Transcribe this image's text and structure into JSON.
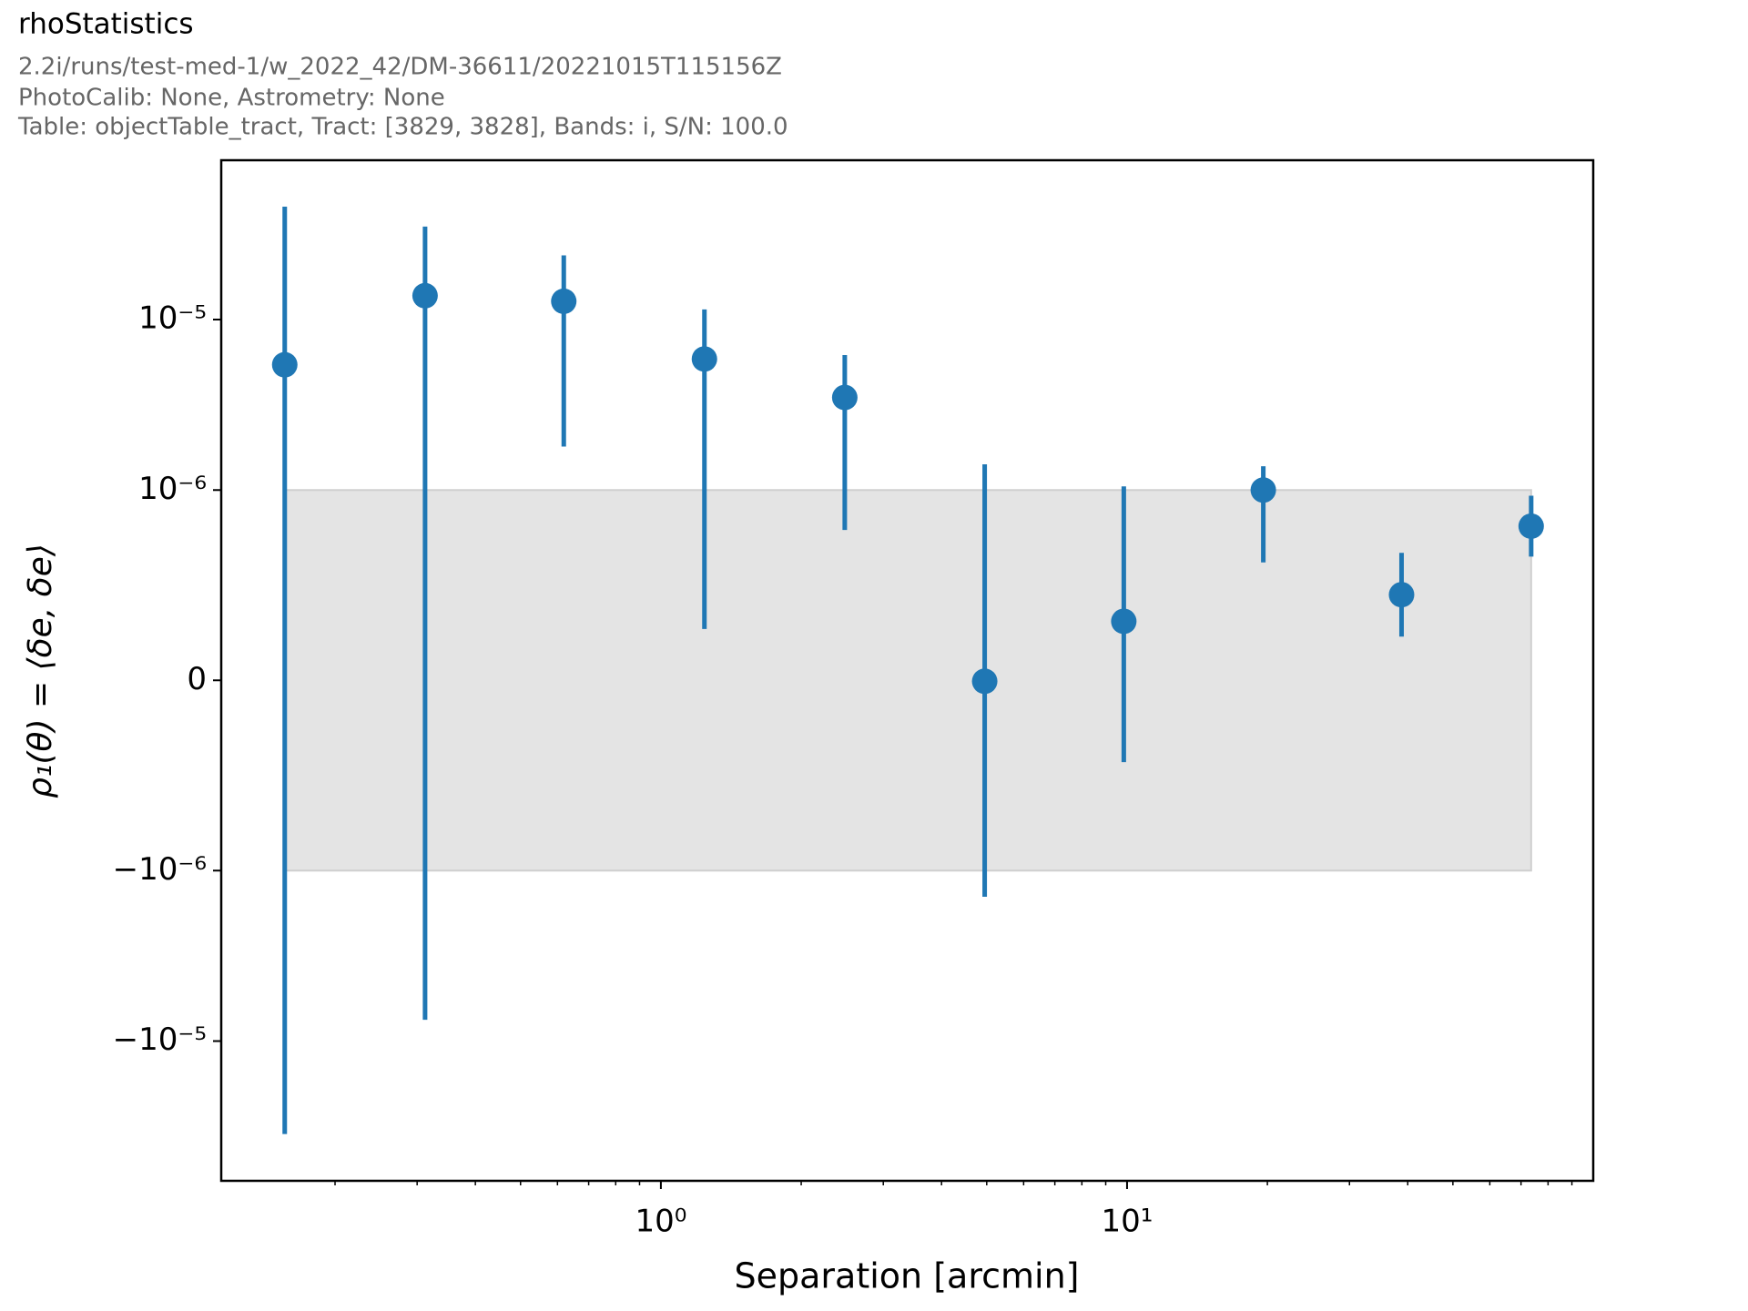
{
  "chart_data": {
    "type": "errorbar",
    "title": "rhoStatistics",
    "subtitle_lines": [
      "2.2i/runs/test-med-1/w_2022_42/DM-36611/20221015T115156Z",
      "PhotoCalib: None, Astrometry: None",
      "Table: objectTable_tract, Tract: [3829, 3828], Bands: i, S/N: 100.0"
    ],
    "xlabel": "Separation [arcmin]",
    "ylabel": "ρ₁(θ) = ⟨δe, δe⟩",
    "xscale": "log",
    "yscale": "symlog",
    "linthresh": 1e-06,
    "color": "#1f77b4",
    "shade_color": "#e4e4e4",
    "shade_range": [
      -1e-06,
      1e-06
    ],
    "x": [
      0.156,
      0.312,
      0.619,
      1.24,
      2.48,
      4.95,
      9.84,
      19.6,
      38.8,
      73.6
    ],
    "values": [
      5.43e-06,
      1.38e-05,
      1.28e-05,
      5.87e-06,
      3.49e-06,
      -5e-09,
      3.1e-07,
      1e-06,
      4.5e-07,
      8.1e-07
    ],
    "errors": [
      4.05e-05,
      2.13e-05,
      1.1e-05,
      5.6e-06,
      2.7e-06,
      1.42e-06,
      7.4e-07,
      3.8e-07,
      2.2e-07,
      1.6e-07
    ],
    "xlim": [
      0.114,
      100
    ],
    "ylim": [
      -6.6e-05,
      8.6e-05
    ],
    "xticks": [
      {
        "value": 1,
        "label": "10⁰"
      },
      {
        "value": 10,
        "label": "10¹"
      }
    ],
    "xticks_minor": [
      0.2,
      0.3,
      0.4,
      0.5,
      0.6,
      0.7,
      0.8,
      0.9,
      2,
      3,
      4,
      5,
      6,
      7,
      8,
      9,
      20,
      30,
      40,
      50,
      60,
      70,
      80,
      90
    ],
    "yticks": [
      {
        "value": -1e-05,
        "label": "−10⁻⁵"
      },
      {
        "value": -1e-06,
        "label": "−10⁻⁶"
      },
      0,
      {
        "value": 1e-06,
        "label": "10⁻⁶"
      },
      {
        "value": 1e-05,
        "label": "10⁻⁵"
      }
    ]
  }
}
